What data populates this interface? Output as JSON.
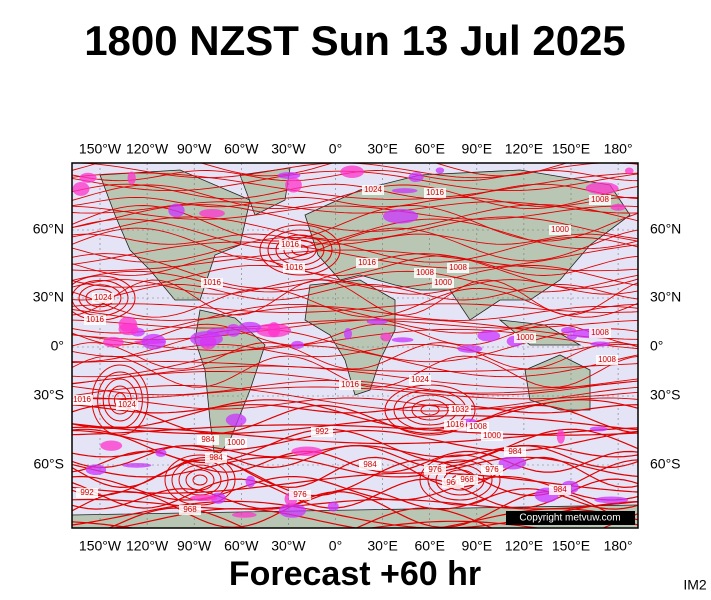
{
  "header": {
    "title": "1800 NZST Sun 13 Jul 2025"
  },
  "map": {
    "lon_labels": [
      "150°W",
      "120°W",
      "90°W",
      "60°W",
      "30°W",
      "0°",
      "30°E",
      "60°E",
      "90°E",
      "120°E",
      "150°E",
      "180°"
    ],
    "lat_labels": [
      "60°N",
      "30°N",
      "0°",
      "30°S",
      "60°S"
    ],
    "isobar_labels": [
      1024,
      1016,
      1016,
      1016,
      1016,
      1016,
      1008,
      1000,
      1008,
      1000,
      1008,
      1008,
      1016,
      1024,
      1032,
      1016,
      1008,
      1000,
      984,
      992,
      984,
      1000,
      984,
      984,
      976,
      960,
      968,
      976,
      992,
      968,
      984,
      976,
      1008,
      1000,
      1024,
      1016,
      1024,
      1016
    ],
    "copyright": "Copyright metvuw.com"
  },
  "footer": {
    "forecast": "Forecast +60 hr",
    "image_id": "IM2"
  }
}
